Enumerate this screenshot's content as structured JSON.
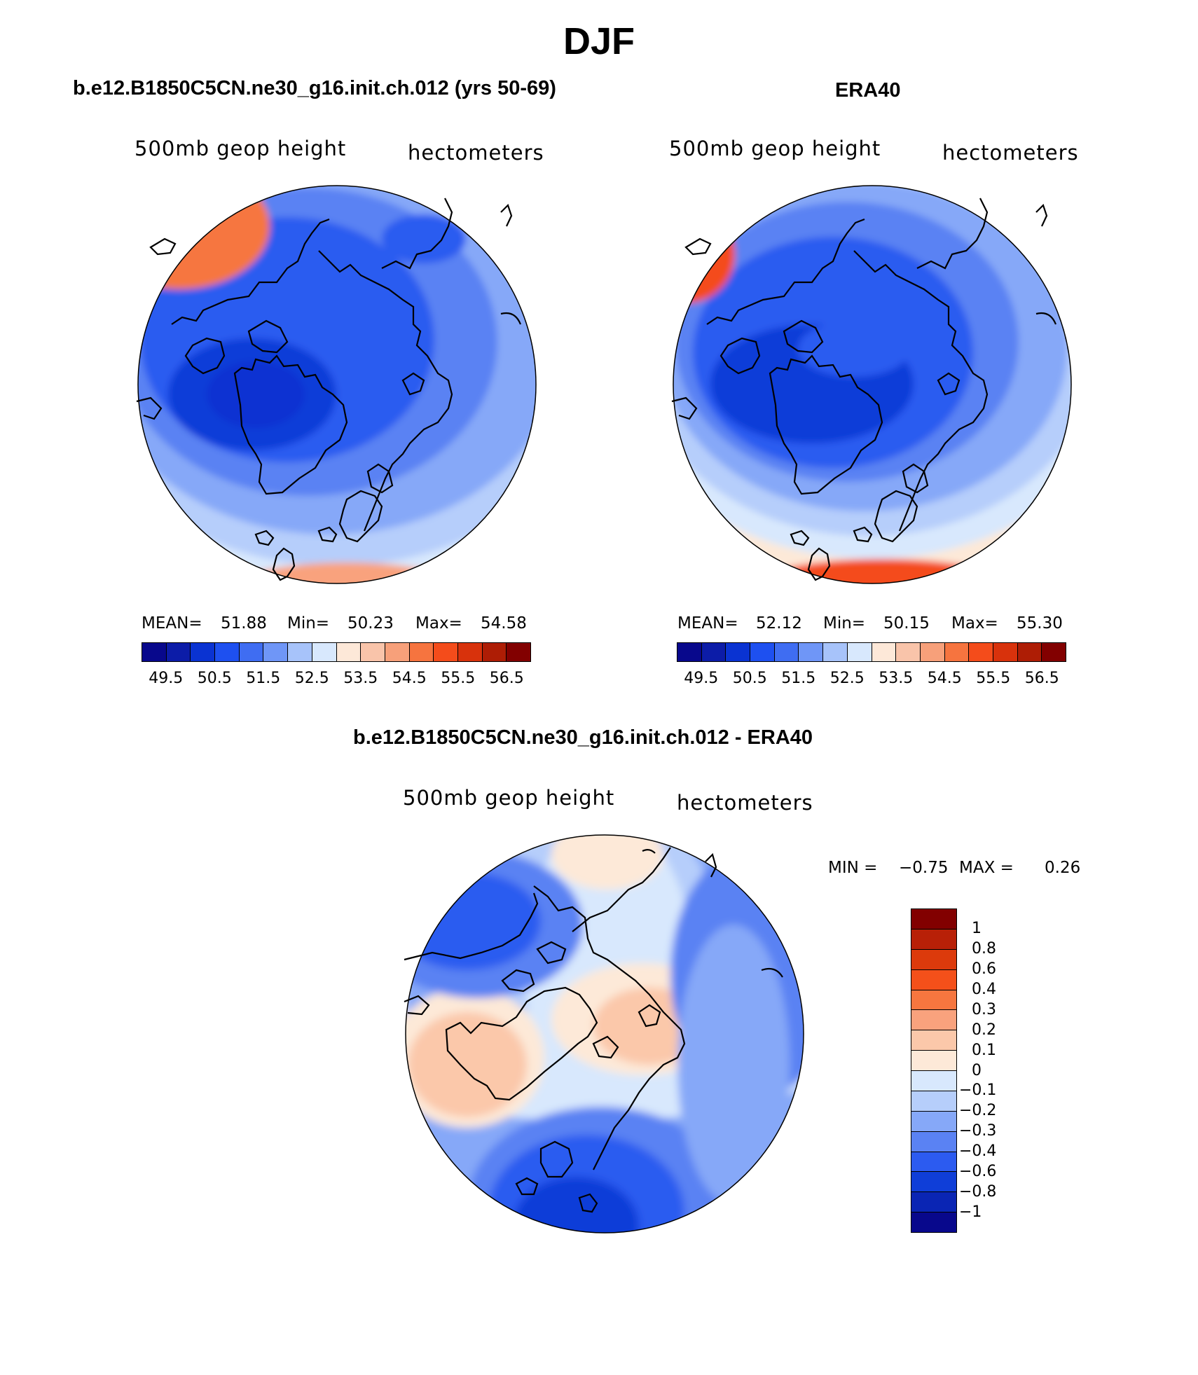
{
  "title": "DJF",
  "panels": [
    {
      "title": "b.e12.B1850C5CN.ne30_g16.init.ch.012 (yrs 50-69)",
      "left_label": "500mb geop height",
      "right_label": "hectometers",
      "mean_label": "MEAN=",
      "mean": "51.88",
      "min_label": "Min=",
      "min": "50.23",
      "max_label": "Max=",
      "max": "54.58"
    },
    {
      "title": "ERA40",
      "left_label": "500mb geop height",
      "right_label": "hectometers",
      "mean_label": "MEAN=",
      "mean": "52.12",
      "min_label": "Min=",
      "min": "50.15",
      "max_label": "Max=",
      "max": "55.30"
    }
  ],
  "abs_colorbar": {
    "colors": [
      "#08088c",
      "#0c1ca8",
      "#0a33d2",
      "#1e50f0",
      "#3f6df2",
      "#6f96f7",
      "#a7c3fa",
      "#d8e8fd",
      "#fde8d8",
      "#f9c4aa",
      "#f7a07a",
      "#f6743f",
      "#f44c1b",
      "#d8320c",
      "#ae1d05",
      "#820000"
    ],
    "labels": [
      "49.5",
      "50.5",
      "51.5",
      "52.5",
      "53.5",
      "54.5",
      "55.5",
      "56.5"
    ]
  },
  "diff": {
    "title": "b.e12.B1850C5CN.ne30_g16.init.ch.012 - ERA40",
    "left_label": "500mb geop height",
    "right_label": "hectometers",
    "min_label": "MIN =",
    "min": "−0.75",
    "max_label": "MAX =",
    "max": "0.26",
    "colorbar": {
      "colors_top_to_bottom": [
        "#820000",
        "#b82007",
        "#dc3a0c",
        "#f4501a",
        "#f6763f",
        "#f9a27d",
        "#fbc8aa",
        "#fde9d8",
        "#d8e8fd",
        "#b6cefb",
        "#86a8f8",
        "#5a82f3",
        "#2c5bf0",
        "#0f3ed8",
        "#0a25b4",
        "#08088c"
      ],
      "labels": [
        "1",
        "0.8",
        "0.6",
        "0.4",
        "0.3",
        "0.2",
        "0.1",
        "0",
        "−0.1",
        "−0.2",
        "−0.3",
        "−0.4",
        "−0.6",
        "−0.8",
        "−1"
      ]
    }
  }
}
